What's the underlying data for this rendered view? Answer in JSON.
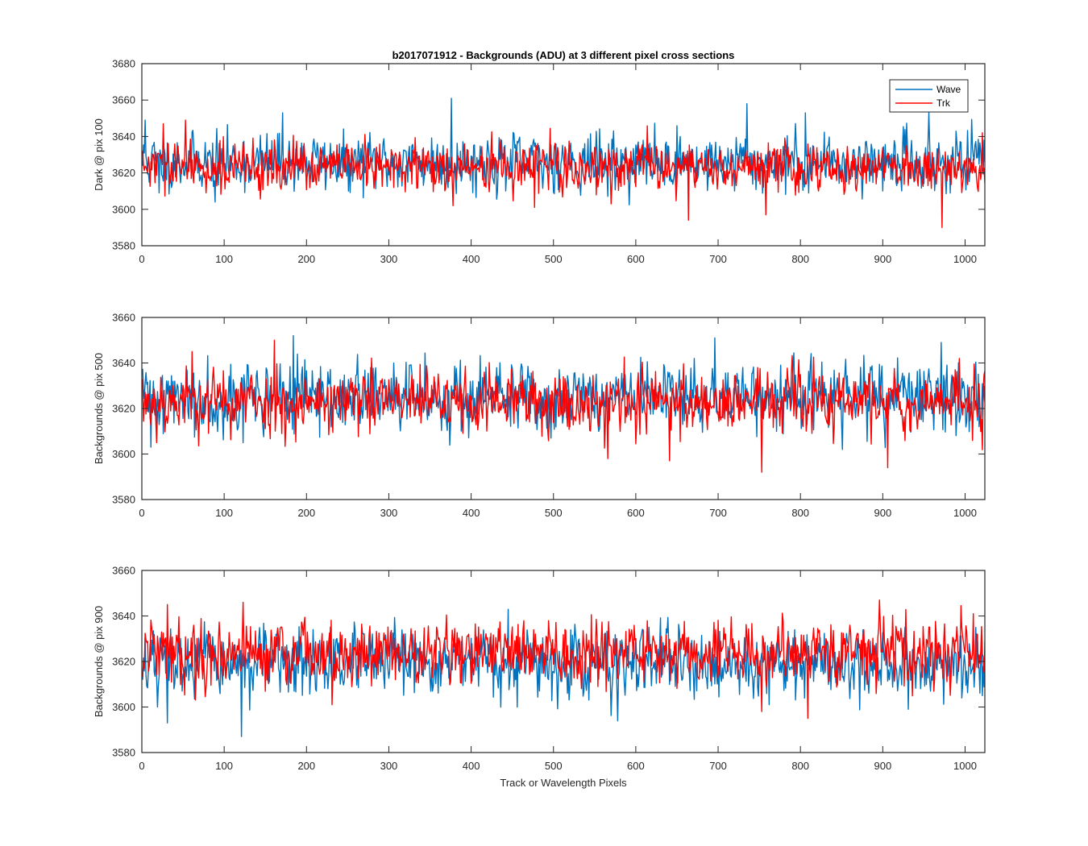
{
  "figure": {
    "title": "b2017071912 - Backgrounds (ADU) at 3 different pixel cross sections",
    "xlabel": "Track or Wavelength Pixels"
  },
  "legend": {
    "items": [
      {
        "label": "Wave",
        "color": "#0072BD"
      },
      {
        "label": "Trk",
        "color": "#FF0000"
      }
    ]
  },
  "chart_data": [
    {
      "type": "line",
      "title": "b2017071912 - Backgrounds (ADU) at 3 different pixel cross sections",
      "xlabel": "",
      "ylabel": "Dark @ pix 100",
      "xlim": [
        0,
        1024
      ],
      "ylim": [
        3580,
        3680
      ],
      "xticks": [
        0,
        100,
        200,
        300,
        400,
        500,
        600,
        700,
        800,
        900,
        1000
      ],
      "yticks": [
        3580,
        3600,
        3620,
        3640,
        3660,
        3680
      ],
      "legend_position": "top-right",
      "num_points": 1024,
      "series": [
        {
          "name": "Wave",
          "color": "#0072BD",
          "mean": 3626,
          "spread": 7.5,
          "seed": 11,
          "spikes": [
            [
              3,
              3649
            ],
            [
              170,
              3653
            ],
            [
              375,
              3661
            ],
            [
              734,
              3658
            ],
            [
              955,
              3653
            ],
            [
              805,
              3653
            ],
            [
              20,
              3609
            ],
            [
              88,
              3604
            ],
            [
              250,
              3610
            ]
          ]
        },
        {
          "name": "Trk",
          "color": "#FF0000",
          "mean": 3623,
          "spread": 6.5,
          "seed": 29,
          "spikes": [
            [
              52,
              3649
            ],
            [
              377,
              3602
            ],
            [
              476,
              3601
            ],
            [
              663,
              3594
            ],
            [
              757,
              3597
            ],
            [
              971,
              3590
            ],
            [
              1020,
              3642
            ],
            [
              25,
              3647
            ]
          ]
        }
      ]
    },
    {
      "type": "line",
      "title": "",
      "xlabel": "",
      "ylabel": "Backgrounds @ pix 500",
      "xlim": [
        0,
        1024
      ],
      "ylim": [
        3580,
        3660
      ],
      "xticks": [
        0,
        100,
        200,
        300,
        400,
        500,
        600,
        700,
        800,
        900,
        1000
      ],
      "yticks": [
        3580,
        3600,
        3620,
        3640,
        3660
      ],
      "num_points": 1024,
      "series": [
        {
          "name": "Wave",
          "color": "#0072BD",
          "mean": 3625,
          "spread": 7.5,
          "seed": 41,
          "spikes": [
            [
              183,
              3652
            ],
            [
              695,
              3651
            ],
            [
              970,
              3649
            ],
            [
              10,
              3603
            ],
            [
              122,
              3605
            ],
            [
              850,
              3602
            ]
          ]
        },
        {
          "name": "Trk",
          "color": "#FF0000",
          "mean": 3623,
          "spread": 7.0,
          "seed": 53,
          "spikes": [
            [
              160,
              3650
            ],
            [
              752,
              3592
            ],
            [
              905,
              3594
            ],
            [
              60,
              3645
            ],
            [
              565,
              3598
            ],
            [
              640,
              3597
            ]
          ]
        }
      ]
    },
    {
      "type": "line",
      "title": "",
      "xlabel": "Track or Wavelength Pixels",
      "ylabel": "Backgrounds @ pix 900",
      "xlim": [
        0,
        1024
      ],
      "ylim": [
        3580,
        3660
      ],
      "xticks": [
        0,
        100,
        200,
        300,
        400,
        500,
        600,
        700,
        800,
        900,
        1000
      ],
      "yticks": [
        3580,
        3600,
        3620,
        3640,
        3660
      ],
      "num_points": 1024,
      "series": [
        {
          "name": "Wave",
          "color": "#0072BD",
          "mean": 3619,
          "spread": 7.0,
          "seed": 67,
          "spikes": [
            [
              120,
              3587
            ],
            [
              30,
              3593
            ],
            [
              18,
              3600
            ],
            [
              455,
              3600
            ],
            [
              930,
              3599
            ],
            [
              1020,
              3605
            ]
          ]
        },
        {
          "name": "Trk",
          "color": "#FF0000",
          "mean": 3624,
          "spread": 7.0,
          "seed": 79,
          "spikes": [
            [
              895,
              3647
            ],
            [
              122,
              3646
            ],
            [
              30,
              3645
            ],
            [
              808,
              3595
            ],
            [
              752,
              3598
            ],
            [
              230,
              3601
            ]
          ]
        }
      ]
    }
  ]
}
